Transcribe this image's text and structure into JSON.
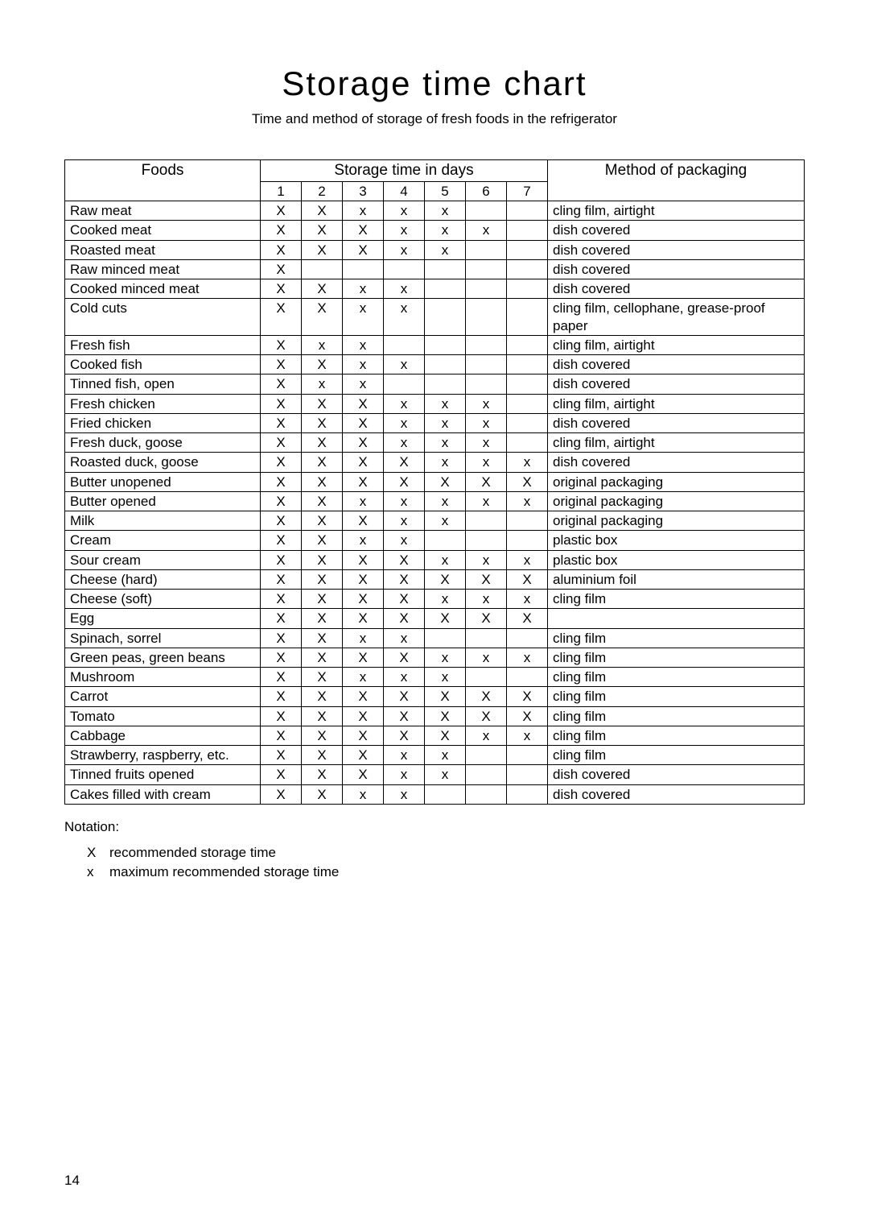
{
  "title": "Storage time chart",
  "subtitle": "Time and method of storage of fresh foods in the refrigerator",
  "table": {
    "header_foods": "Foods",
    "header_days": "Storage time in days",
    "header_method": "Method of packaging",
    "day_labels": [
      "1",
      "2",
      "3",
      "4",
      "5",
      "6",
      "7"
    ],
    "rows": [
      {
        "food": "Raw meat",
        "days": [
          "X",
          "X",
          "x",
          "x",
          "x",
          "",
          ""
        ],
        "method": "cling film, airtight"
      },
      {
        "food": "Cooked meat",
        "days": [
          "X",
          "X",
          "X",
          "x",
          "x",
          "x",
          ""
        ],
        "method": "dish covered"
      },
      {
        "food": "Roasted meat",
        "days": [
          "X",
          "X",
          "X",
          "x",
          "x",
          "",
          ""
        ],
        "method": "dish covered"
      },
      {
        "food": "Raw minced meat",
        "days": [
          "X",
          "",
          "",
          "",
          "",
          "",
          ""
        ],
        "method": "dish covered"
      },
      {
        "food": "Cooked minced meat",
        "days": [
          "X",
          "X",
          "x",
          "x",
          "",
          "",
          ""
        ],
        "method": "dish covered"
      },
      {
        "food": "Cold cuts",
        "days": [
          "X",
          "X",
          "x",
          "x",
          "",
          "",
          ""
        ],
        "method": "cling film, cellophane, grease-proof paper"
      },
      {
        "food": "Fresh fish",
        "days": [
          "X",
          "x",
          "x",
          "",
          "",
          "",
          ""
        ],
        "method": "cling film, airtight"
      },
      {
        "food": "Cooked fish",
        "days": [
          "X",
          "X",
          "x",
          "x",
          "",
          "",
          ""
        ],
        "method": "dish covered"
      },
      {
        "food": "Tinned fish, open",
        "days": [
          "X",
          "x",
          "x",
          "",
          "",
          "",
          ""
        ],
        "method": "dish covered"
      },
      {
        "food": "Fresh chicken",
        "days": [
          "X",
          "X",
          "X",
          "x",
          "x",
          "x",
          ""
        ],
        "method": "cling film, airtight"
      },
      {
        "food": "Fried chicken",
        "days": [
          "X",
          "X",
          "X",
          "x",
          "x",
          "x",
          ""
        ],
        "method": "dish covered"
      },
      {
        "food": "Fresh duck, goose",
        "days": [
          "X",
          "X",
          "X",
          "x",
          "x",
          "x",
          ""
        ],
        "method": "cling film, airtight"
      },
      {
        "food": "Roasted duck, goose",
        "days": [
          "X",
          "X",
          "X",
          "X",
          "x",
          "x",
          "x"
        ],
        "method": "dish covered"
      },
      {
        "food": "Butter unopened",
        "days": [
          "X",
          "X",
          "X",
          "X",
          "X",
          "X",
          "X"
        ],
        "method": "original packaging"
      },
      {
        "food": "Butter opened",
        "days": [
          "X",
          "X",
          "x",
          "x",
          "x",
          "x",
          "x"
        ],
        "method": "original packaging"
      },
      {
        "food": "Milk",
        "days": [
          "X",
          "X",
          "X",
          "x",
          "x",
          "",
          ""
        ],
        "method": "original packaging"
      },
      {
        "food": "Cream",
        "days": [
          "X",
          "X",
          "x",
          "x",
          "",
          "",
          ""
        ],
        "method": "plastic box"
      },
      {
        "food": "Sour cream",
        "days": [
          "X",
          "X",
          "X",
          "X",
          "x",
          "x",
          "x"
        ],
        "method": "plastic box"
      },
      {
        "food": "Cheese (hard)",
        "days": [
          "X",
          "X",
          "X",
          "X",
          "X",
          "X",
          "X"
        ],
        "method": "aluminium foil"
      },
      {
        "food": "Cheese (soft)",
        "days": [
          "X",
          "X",
          "X",
          "X",
          "x",
          "x",
          "x"
        ],
        "method": "cling film"
      },
      {
        "food": "Egg",
        "days": [
          "X",
          "X",
          "X",
          "X",
          "X",
          "X",
          "X"
        ],
        "method": ""
      },
      {
        "food": "Spinach, sorrel",
        "days": [
          "X",
          "X",
          "x",
          "x",
          "",
          "",
          ""
        ],
        "method": "cling film"
      },
      {
        "food": "Green peas, green beans",
        "days": [
          "X",
          "X",
          "X",
          "X",
          "x",
          "x",
          "x"
        ],
        "method": "cling film"
      },
      {
        "food": "Mushroom",
        "days": [
          "X",
          "X",
          "x",
          "x",
          "x",
          "",
          ""
        ],
        "method": "cling film"
      },
      {
        "food": "Carrot",
        "days": [
          "X",
          "X",
          "X",
          "X",
          "X",
          "X",
          "X"
        ],
        "method": "cling film"
      },
      {
        "food": "Tomato",
        "days": [
          "X",
          "X",
          "X",
          "X",
          "X",
          "X",
          "X"
        ],
        "method": "cling film"
      },
      {
        "food": "Cabbage",
        "days": [
          "X",
          "X",
          "X",
          "X",
          "X",
          "x",
          "x"
        ],
        "method": "cling film"
      },
      {
        "food": "Strawberry, raspberry, etc.",
        "days": [
          "X",
          "X",
          "X",
          "x",
          "x",
          "",
          ""
        ],
        "method": "cling film"
      },
      {
        "food": "Tinned fruits opened",
        "days": [
          "X",
          "X",
          "X",
          "x",
          "x",
          "",
          ""
        ],
        "method": "dish covered"
      },
      {
        "food": "Cakes filled with cream",
        "days": [
          "X",
          "X",
          "x",
          "x",
          "",
          "",
          ""
        ],
        "method": "dish covered"
      }
    ]
  },
  "notation": {
    "label": "Notation:",
    "items": [
      {
        "sym": "X",
        "text": "recommended storage time"
      },
      {
        "sym": "x",
        "text": "maximum recommended storage time"
      }
    ]
  },
  "page_number": "14"
}
